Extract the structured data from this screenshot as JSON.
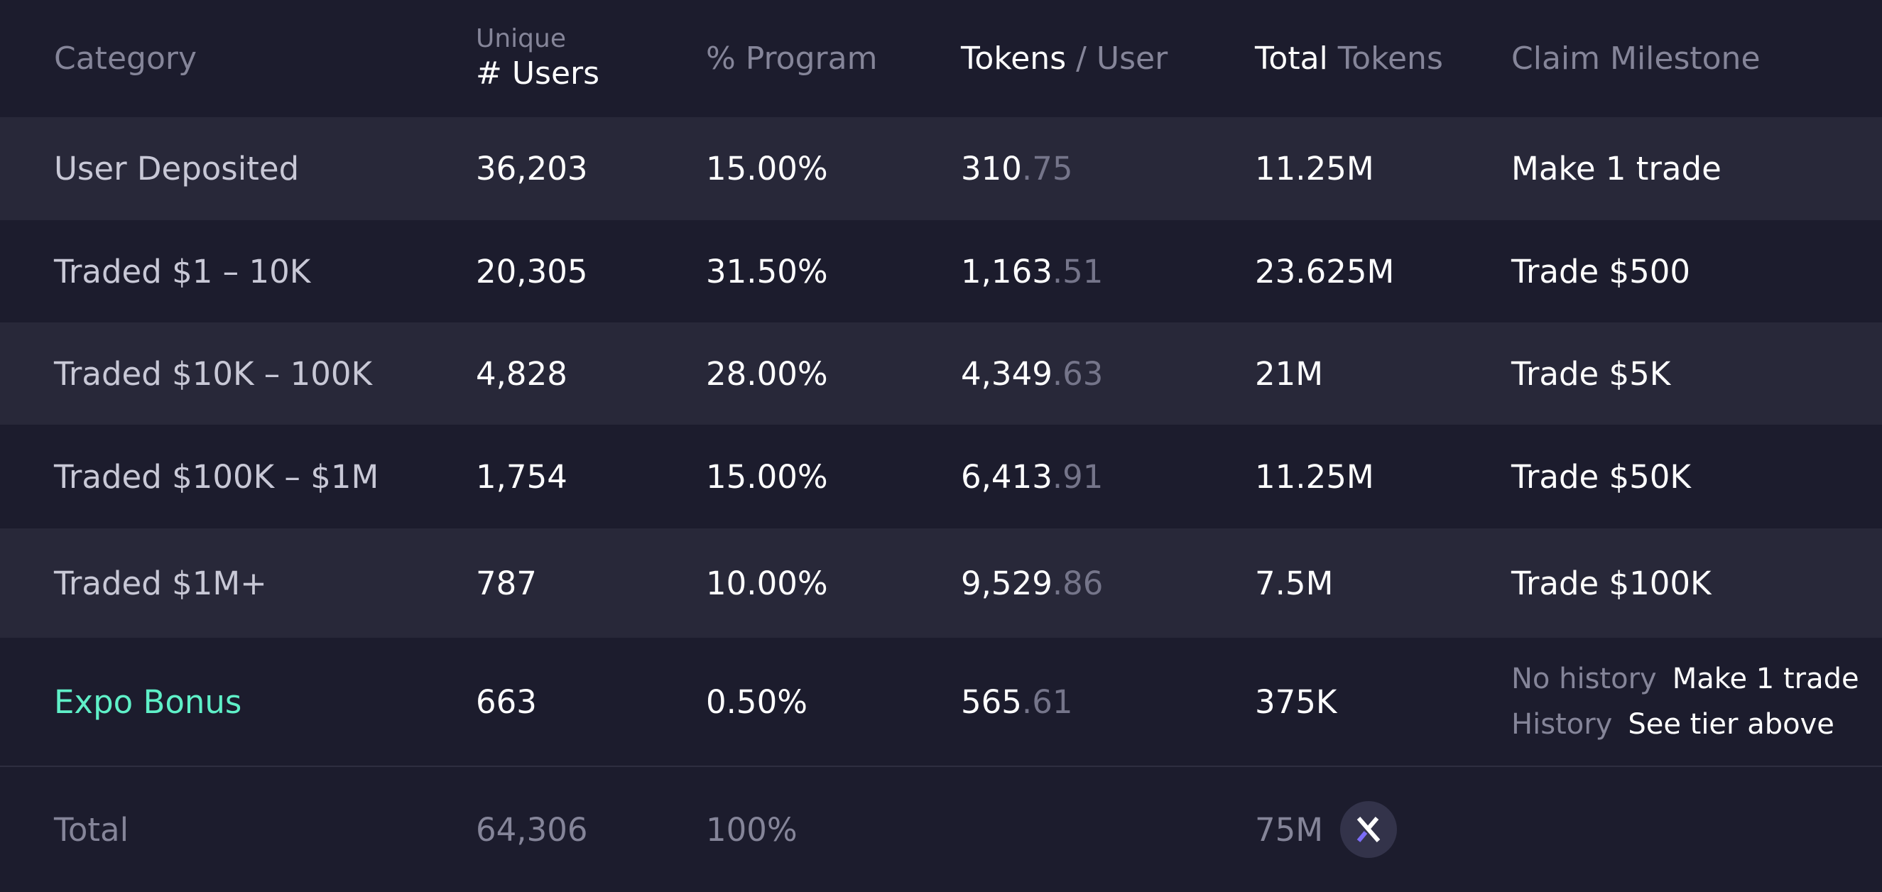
{
  "header": {
    "category": "Category",
    "users_small": "Unique",
    "users_big": "# Users",
    "program": "% Program",
    "tokens_user_a": "Tokens",
    "tokens_user_b": " / User",
    "total_tokens_a": "Total",
    "total_tokens_b": " Tokens",
    "claim": "Claim Milestone"
  },
  "rows": [
    {
      "category": "User Deposited",
      "users": "36,203",
      "program": "15.00%",
      "tpu_int": "310",
      "tpu_dec": ".75",
      "total": "11.25M",
      "claim": "Make 1 trade"
    },
    {
      "category": "Traded $1 – 10K",
      "users": "20,305",
      "program": "31.50%",
      "tpu_int": "1,163",
      "tpu_dec": ".51",
      "total": "23.625M",
      "claim": "Trade $500"
    },
    {
      "category": "Traded $10K – 100K",
      "users": "4,828",
      "program": "28.00%",
      "tpu_int": "4,349",
      "tpu_dec": ".63",
      "total": "21M",
      "claim": "Trade $5K"
    },
    {
      "category": "Traded $100K – $1M",
      "users": "1,754",
      "program": "15.00%",
      "tpu_int": "6,413",
      "tpu_dec": ".91",
      "total": "11.25M",
      "claim": "Trade $50K"
    },
    {
      "category": "Traded $1M+",
      "users": "787",
      "program": "10.00%",
      "tpu_int": "9,529",
      "tpu_dec": ".86",
      "total": "7.5M",
      "claim": "Trade $100K"
    }
  ],
  "bonus": {
    "category": "Expo Bonus",
    "users": "663",
    "program": "0.50%",
    "tpu_int": "565",
    "tpu_dec": ".61",
    "total": "375K",
    "claim_lines": [
      {
        "key": "No history",
        "value": "Make 1 trade"
      },
      {
        "key": "History",
        "value": "See tier above"
      }
    ]
  },
  "total": {
    "label": "Total",
    "users": "64,306",
    "program": "100%",
    "tokens": "75M",
    "logo_icon": "dydx-logo-icon"
  },
  "colors": {
    "background": "#1c1c2d",
    "band": "#282839",
    "accent": "#5ff0c8"
  }
}
